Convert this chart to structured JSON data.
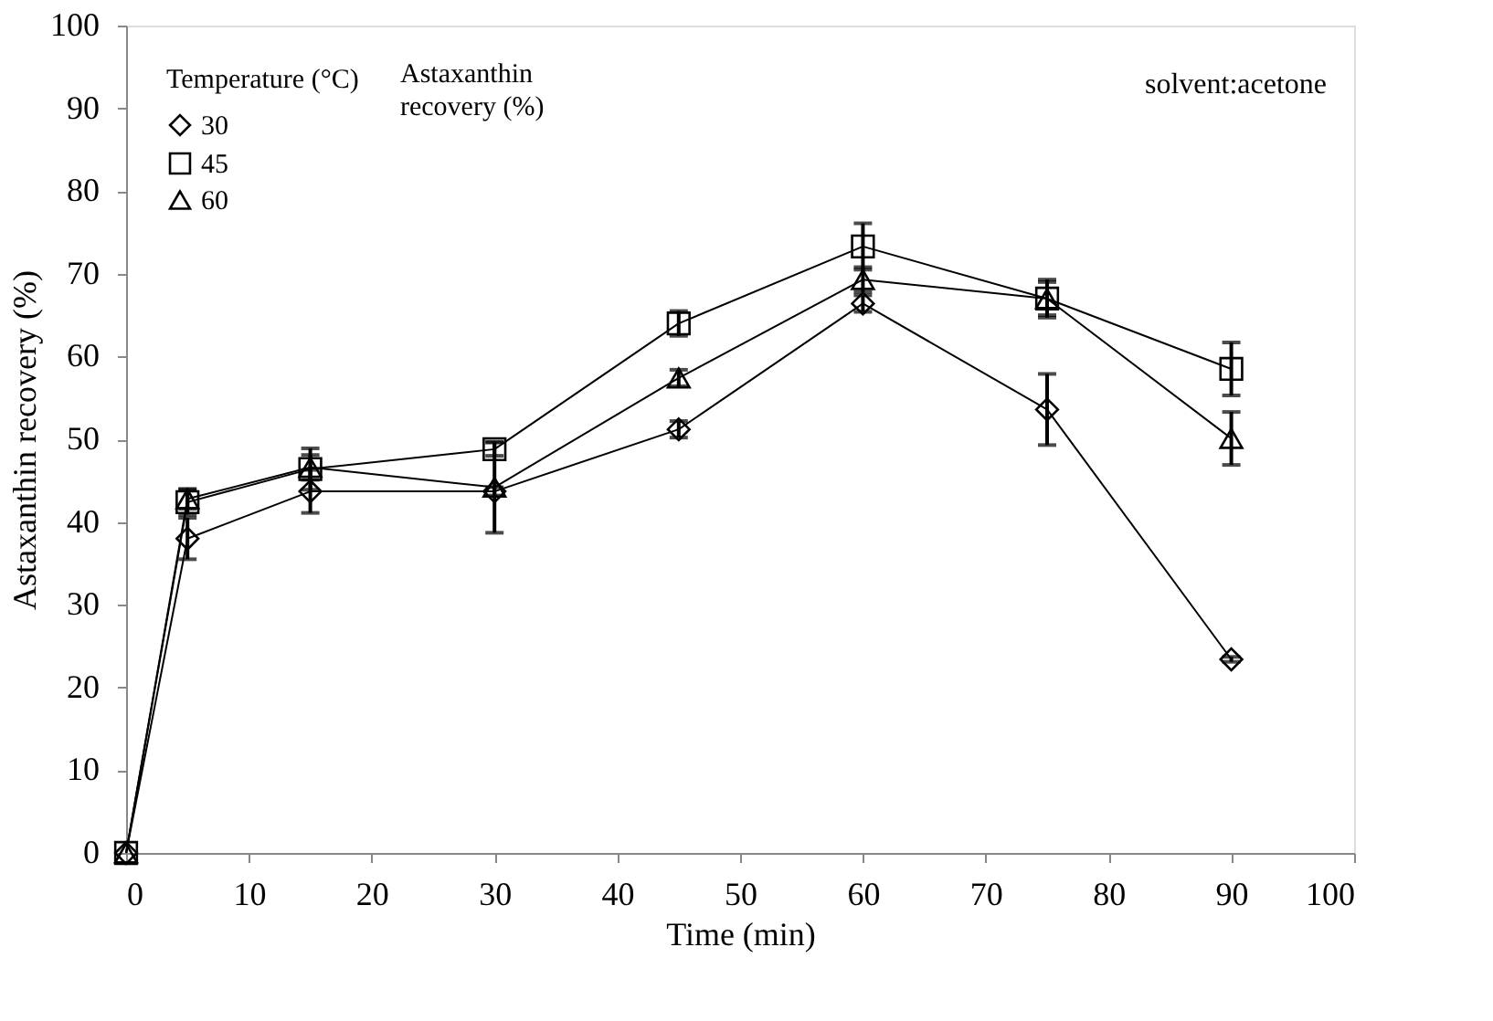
{
  "chart_data": {
    "type": "line",
    "xlabel": "Time (min)",
    "ylabel": "Astaxanthin recovery (%)",
    "x": [
      0,
      5,
      15,
      30,
      45,
      60,
      75,
      90
    ],
    "xlim": [
      0,
      100
    ],
    "xticks": [
      0,
      10,
      20,
      30,
      40,
      50,
      60,
      70,
      80,
      90,
      100
    ],
    "ylim": [
      0,
      100
    ],
    "yticks": [
      0,
      10,
      20,
      30,
      40,
      50,
      60,
      70,
      80,
      90,
      100
    ],
    "grid": false,
    "legend": "top left",
    "legend_title": "Temperature (°C)",
    "annotations": [
      "Astaxanthin recovery (%)",
      "solvent:acetone"
    ],
    "line_style": "solid",
    "series": [
      {
        "name": "30",
        "color": "#000000",
        "marker": "diamond",
        "values": [
          0,
          38,
          43.7,
          43.7,
          51.2,
          66.4,
          53.6,
          23.4
        ],
        "errors": [
          null,
          2.5,
          2.6,
          0.5,
          1,
          1,
          4.3,
          0.3
        ]
      },
      {
        "name": "45",
        "color": "#000000",
        "marker": "square",
        "values": [
          0,
          42.4,
          46.4,
          48.8,
          64,
          73.3,
          67,
          58.5
        ],
        "errors": [
          null,
          1.5,
          2.5,
          0.8,
          1.5,
          2.8,
          2.3,
          3.2
        ]
      },
      {
        "name": "60",
        "color": "#000000",
        "marker": "triangle",
        "values": [
          0,
          42.8,
          46.6,
          44.2,
          57.4,
          69.3,
          67,
          50.1
        ],
        "errors": [
          null,
          1.2,
          1.5,
          5.5,
          1,
          1.5,
          2,
          3.2
        ]
      }
    ]
  }
}
